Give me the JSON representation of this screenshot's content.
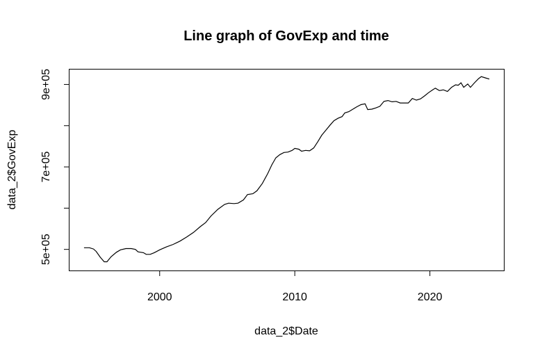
{
  "chart_data": {
    "type": "line",
    "title": "Line graph of GovExp and time",
    "xlabel": "data_2$Date",
    "ylabel": "data_2$GovExp",
    "xlim": [
      1993.3,
      2025.5
    ],
    "ylim": [
      448000,
      937000
    ],
    "x_ticks": [
      {
        "value": 2000,
        "label": "2000"
      },
      {
        "value": 2010,
        "label": "2010"
      },
      {
        "value": 2020,
        "label": "2020"
      }
    ],
    "y_ticks": [
      {
        "value": 500000,
        "label": "5e+05"
      },
      {
        "value": 600000,
        "label": ""
      },
      {
        "value": 700000,
        "label": "7e+05"
      },
      {
        "value": 800000,
        "label": ""
      },
      {
        "value": 900000,
        "label": "9e+05"
      }
    ],
    "grid": false,
    "series": [
      {
        "color": "#000000",
        "points": [
          [
            1994.4,
            504000
          ],
          [
            1994.8,
            504000
          ],
          [
            1995.1,
            501000
          ],
          [
            1995.3,
            495000
          ],
          [
            1995.6,
            481000
          ],
          [
            1995.9,
            470000
          ],
          [
            1996.1,
            470000
          ],
          [
            1996.4,
            482000
          ],
          [
            1996.8,
            493000
          ],
          [
            1997.1,
            499000
          ],
          [
            1997.5,
            502000
          ],
          [
            1997.9,
            502000
          ],
          [
            1998.2,
            500000
          ],
          [
            1998.4,
            494000
          ],
          [
            1998.8,
            492000
          ],
          [
            1999.0,
            488000
          ],
          [
            1999.3,
            488000
          ],
          [
            1999.6,
            492000
          ],
          [
            2000.0,
            499000
          ],
          [
            2000.5,
            506000
          ],
          [
            2001.0,
            512000
          ],
          [
            2001.5,
            520000
          ],
          [
            2002.0,
            530000
          ],
          [
            2002.5,
            541000
          ],
          [
            2003.0,
            555000
          ],
          [
            2003.4,
            565000
          ],
          [
            2003.8,
            581000
          ],
          [
            2004.3,
            597000
          ],
          [
            2004.8,
            609000
          ],
          [
            2005.1,
            612000
          ],
          [
            2005.5,
            611000
          ],
          [
            2005.8,
            612000
          ],
          [
            2006.2,
            620000
          ],
          [
            2006.5,
            633000
          ],
          [
            2006.9,
            635000
          ],
          [
            2007.2,
            642000
          ],
          [
            2007.6,
            660000
          ],
          [
            2008.0,
            684000
          ],
          [
            2008.3,
            705000
          ],
          [
            2008.6,
            722000
          ],
          [
            2008.9,
            730000
          ],
          [
            2009.2,
            735000
          ],
          [
            2009.5,
            736000
          ],
          [
            2009.8,
            740000
          ],
          [
            2010.0,
            745000
          ],
          [
            2010.3,
            743000
          ],
          [
            2010.5,
            738000
          ],
          [
            2010.8,
            740000
          ],
          [
            2011.1,
            739000
          ],
          [
            2011.4,
            746000
          ],
          [
            2011.7,
            761000
          ],
          [
            2012.0,
            777000
          ],
          [
            2012.3,
            789000
          ],
          [
            2012.6,
            801000
          ],
          [
            2012.9,
            812000
          ],
          [
            2013.2,
            818000
          ],
          [
            2013.5,
            822000
          ],
          [
            2013.7,
            831000
          ],
          [
            2014.0,
            834000
          ],
          [
            2014.3,
            840000
          ],
          [
            2014.6,
            846000
          ],
          [
            2014.9,
            851000
          ],
          [
            2015.2,
            853000
          ],
          [
            2015.4,
            839000
          ],
          [
            2015.7,
            840000
          ],
          [
            2016.0,
            843000
          ],
          [
            2016.3,
            847000
          ],
          [
            2016.6,
            859000
          ],
          [
            2016.9,
            861000
          ],
          [
            2017.2,
            858000
          ],
          [
            2017.5,
            859000
          ],
          [
            2017.8,
            855000
          ],
          [
            2018.1,
            855000
          ],
          [
            2018.4,
            855000
          ],
          [
            2018.7,
            866000
          ],
          [
            2019.0,
            862000
          ],
          [
            2019.3,
            865000
          ],
          [
            2019.6,
            872000
          ],
          [
            2019.9,
            880000
          ],
          [
            2020.2,
            887000
          ],
          [
            2020.4,
            891000
          ],
          [
            2020.7,
            885000
          ],
          [
            2021.0,
            887000
          ],
          [
            2021.3,
            883000
          ],
          [
            2021.6,
            893000
          ],
          [
            2021.9,
            899000
          ],
          [
            2022.1,
            898000
          ],
          [
            2022.3,
            904000
          ],
          [
            2022.5,
            893000
          ],
          [
            2022.8,
            901000
          ],
          [
            2023.0,
            893000
          ],
          [
            2023.3,
            904000
          ],
          [
            2023.6,
            914000
          ],
          [
            2023.8,
            919000
          ],
          [
            2024.1,
            916000
          ],
          [
            2024.4,
            913000
          ]
        ]
      }
    ]
  }
}
